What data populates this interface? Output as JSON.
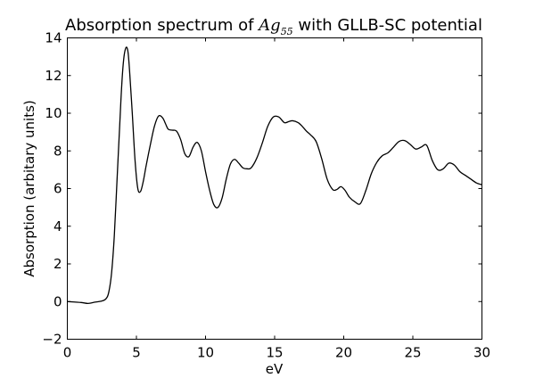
{
  "chart_data": {
    "type": "line",
    "title_prefix": "Absorption spectrum of ",
    "title_math_base": "Ag",
    "title_math_sub": "55",
    "title_suffix": " with GLLB-SC potential",
    "xlabel": "eV",
    "ylabel": "Absorption (arbitary units)",
    "xlim": [
      0,
      30
    ],
    "ylim": [
      -2,
      14
    ],
    "x_ticks": [
      0,
      5,
      10,
      15,
      20,
      25,
      30
    ],
    "y_ticks": [
      -2,
      0,
      2,
      4,
      6,
      8,
      10,
      12,
      14
    ],
    "grid": false,
    "line_color": "#000000",
    "series": [
      {
        "x": [
          0,
          1,
          1.5,
          2,
          2.5,
          2.8,
          3.0,
          3.2,
          3.4,
          3.6,
          3.8,
          3.9,
          4.0,
          4.1,
          4.2,
          4.3,
          4.4,
          4.5,
          4.7,
          4.9,
          5.1,
          5.3,
          5.5,
          5.7,
          6.0,
          6.3,
          6.6,
          6.9,
          7.1,
          7.3,
          7.6,
          7.9,
          8.2,
          8.5,
          8.8,
          9.1,
          9.4,
          9.7,
          10.0,
          10.3,
          10.6,
          10.9,
          11.2,
          11.5,
          11.8,
          12.1,
          12.4,
          12.7,
          13.0,
          13.3,
          13.7,
          14.1,
          14.5,
          14.9,
          15.3,
          15.7,
          16.0,
          16.3,
          16.7,
          17.0,
          17.3,
          17.6,
          18.0,
          18.4,
          18.8,
          19.2,
          19.5,
          19.8,
          20.1,
          20.4,
          20.8,
          21.2,
          21.6,
          22.0,
          22.4,
          22.8,
          23.2,
          23.6,
          24.0,
          24.4,
          24.8,
          25.2,
          25.6,
          26.0,
          26.4,
          26.8,
          27.2,
          27.6,
          28.0,
          28.4,
          28.8,
          29.2,
          29.6,
          30.0
        ],
        "values": [
          0.0,
          -0.05,
          -0.1,
          -0.03,
          0.03,
          0.15,
          0.5,
          1.5,
          3.5,
          6.5,
          9.5,
          11.0,
          12.2,
          13.0,
          13.4,
          13.5,
          13.2,
          12.3,
          10.0,
          7.5,
          6.0,
          5.85,
          6.4,
          7.2,
          8.3,
          9.3,
          9.85,
          9.75,
          9.45,
          9.15,
          9.1,
          9.05,
          8.6,
          7.85,
          7.7,
          8.2,
          8.45,
          8.0,
          6.9,
          5.9,
          5.15,
          5.0,
          5.5,
          6.5,
          7.3,
          7.55,
          7.35,
          7.1,
          7.05,
          7.1,
          7.6,
          8.4,
          9.3,
          9.8,
          9.8,
          9.5,
          9.55,
          9.6,
          9.5,
          9.3,
          9.05,
          8.85,
          8.5,
          7.6,
          6.5,
          5.95,
          5.95,
          6.1,
          5.9,
          5.55,
          5.3,
          5.2,
          5.9,
          6.8,
          7.4,
          7.75,
          7.9,
          8.2,
          8.5,
          8.55,
          8.35,
          8.1,
          8.2,
          8.3,
          7.5,
          7.0,
          7.05,
          7.35,
          7.25,
          6.9,
          6.7,
          6.5,
          6.3,
          6.2
        ]
      }
    ]
  }
}
